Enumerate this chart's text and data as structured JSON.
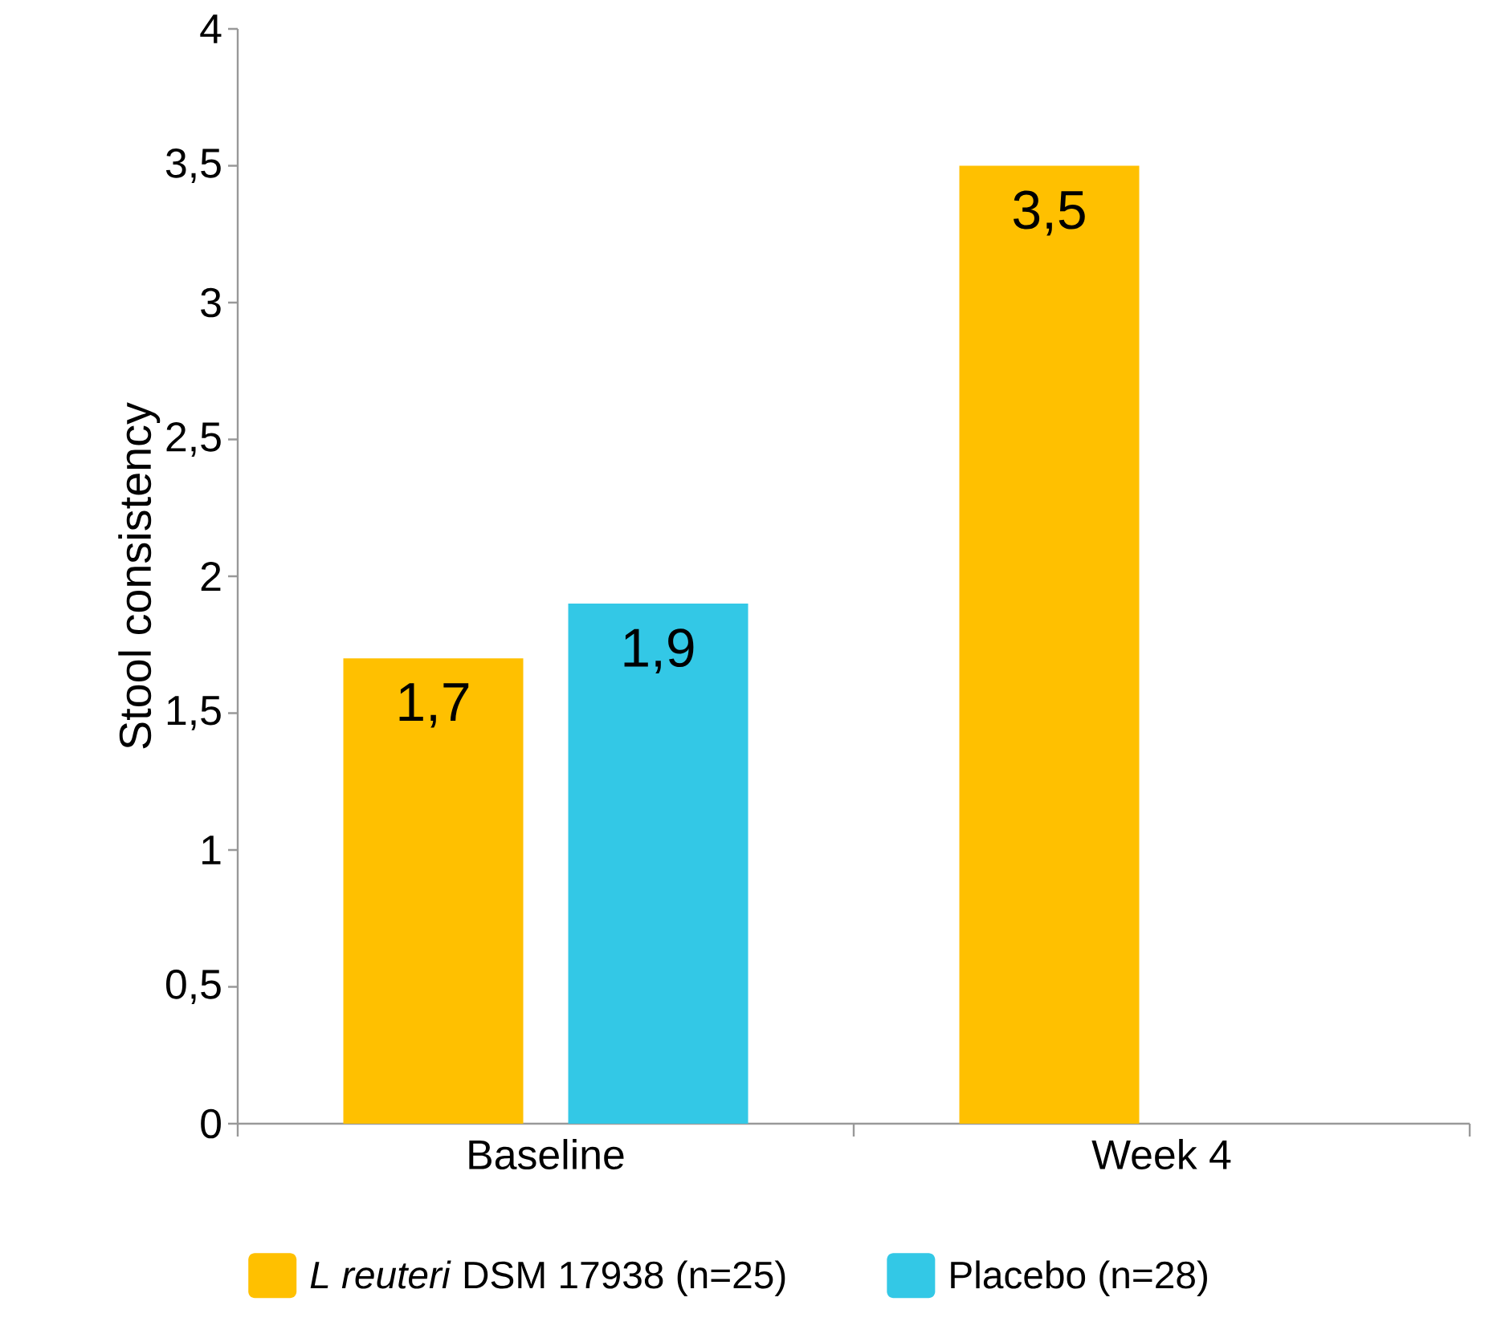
{
  "chart_data": {
    "type": "bar",
    "ylabel": "Stool consistency",
    "categories": [
      "Baseline",
      "Week 4"
    ],
    "series": [
      {
        "name": "*L reuteri* DSM 17938 (n=25)",
        "color": "#ffc000",
        "values": [
          1.7,
          3.5
        ],
        "value_labels": [
          "1,7",
          "3,5"
        ]
      },
      {
        "name": "Placebo (n=28)",
        "color": "#33c8e6",
        "values": [
          1.9,
          null
        ],
        "value_labels": [
          "1,9",
          null
        ]
      }
    ],
    "ylim": [
      0,
      4
    ],
    "yticks": [
      0,
      {
        "value": 0.5,
        "label": "0,5"
      },
      1,
      {
        "value": 1.5,
        "label": "1,5"
      },
      2,
      {
        "value": 2.5,
        "label": "2,5"
      },
      3,
      {
        "value": 3.5,
        "label": "3,5"
      },
      4
    ],
    "legend": "bottom",
    "grid": false
  }
}
